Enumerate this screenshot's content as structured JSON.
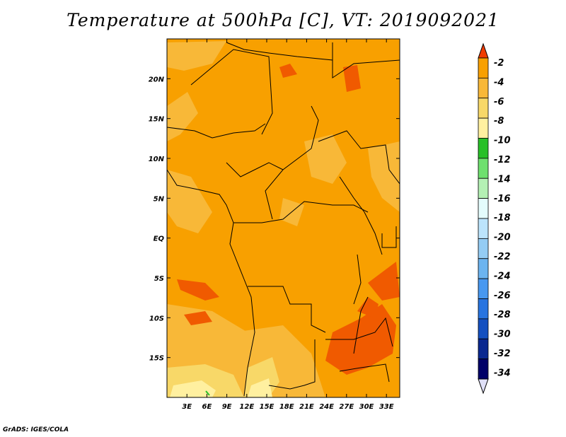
{
  "title": "Temperature at 500hPa [C], VT: 2019092021",
  "credit": "GrADS: IGES/COLA",
  "map": {
    "lon_range": [
      0,
      35
    ],
    "lat_range": [
      -20,
      25
    ],
    "base_fill": "#f8a000",
    "x_ticks": [
      {
        "lon": 3,
        "label": "3E"
      },
      {
        "lon": 6,
        "label": "6E"
      },
      {
        "lon": 9,
        "label": "9E"
      },
      {
        "lon": 12,
        "label": "12E"
      },
      {
        "lon": 15,
        "label": "15E"
      },
      {
        "lon": 18,
        "label": "18E"
      },
      {
        "lon": 21,
        "label": "21E"
      },
      {
        "lon": 24,
        "label": "24E"
      },
      {
        "lon": 27,
        "label": "27E"
      },
      {
        "lon": 30,
        "label": "30E"
      },
      {
        "lon": 33,
        "label": "33E"
      }
    ],
    "y_ticks": [
      {
        "lat": 20,
        "label": "20N"
      },
      {
        "lat": 15,
        "label": "15N"
      },
      {
        "lat": 10,
        "label": "10N"
      },
      {
        "lat": 5,
        "label": "5N"
      },
      {
        "lat": 0,
        "label": "EQ"
      },
      {
        "lat": -5,
        "label": "5S"
      },
      {
        "lat": -10,
        "label": "10S"
      },
      {
        "lat": -15,
        "label": "15S"
      }
    ]
  },
  "colorbar": {
    "labels": [
      "-2",
      "-4",
      "-6",
      "-8",
      "-10",
      "-12",
      "-14",
      "-16",
      "-18",
      "-20",
      "-22",
      "-24",
      "-26",
      "-28",
      "-30",
      "-32",
      "-34"
    ],
    "colors": [
      "#f05a00",
      "#f8a000",
      "#f8b838",
      "#f8d868",
      "#fff0a0",
      "#28c028",
      "#6ee06e",
      "#b4f0b4",
      "#e4fcfc",
      "#bce4fc",
      "#94ccf4",
      "#6cb4f0",
      "#4898f0",
      "#2874e0",
      "#1450c0",
      "#0a2890",
      "#000068"
    ],
    "top_arrow_color": "#f03c00",
    "bottom_arrow_color": "#e0e0f8"
  }
}
